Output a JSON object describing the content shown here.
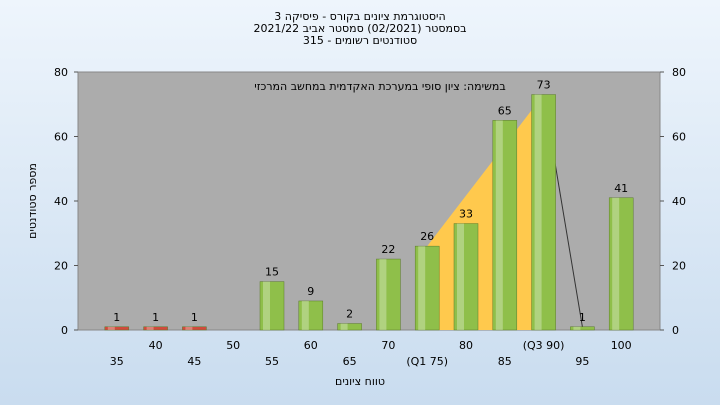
{
  "chart_data": {
    "type": "bar",
    "title": "היסטוגרמת ציונים בקורס - פיסיקה 3",
    "subtitle": "בסמסטר  (02/2021)  סמסטר אביב 2021/22",
    "subtitle2": "סטודנטים רשומים - 315",
    "annotation": "במשימה: ציון סופי במערכת האקדמית במחשב המרכזי",
    "xlabel": "טווח ציונים",
    "ylabel": "מספר סטודנטים",
    "categories": [
      "35",
      "40",
      "45",
      "50",
      "55",
      "60",
      "65",
      "70",
      "(Q1 75)",
      "80",
      "85",
      "(Q3 90)",
      "95",
      "100"
    ],
    "values": [
      1,
      1,
      1,
      0,
      15,
      9,
      2,
      22,
      26,
      33,
      65,
      73,
      1,
      41
    ],
    "colors": [
      "#d24a3c",
      "#d24a3c",
      "#d24a3c",
      "#8fbf4a",
      "#8fbf4a",
      "#8fbf4a",
      "#8fbf4a",
      "#8fbf4a",
      "#8fbf4a",
      "#8fbf4a",
      "#8fbf4a",
      "#8fbf4a",
      "#8fbf4a",
      "#8fbf4a"
    ],
    "quartile_color": "#ffc94d",
    "ylim": [
      0,
      80
    ],
    "yticks": [
      0,
      20,
      40,
      60,
      80
    ],
    "grid": false
  }
}
